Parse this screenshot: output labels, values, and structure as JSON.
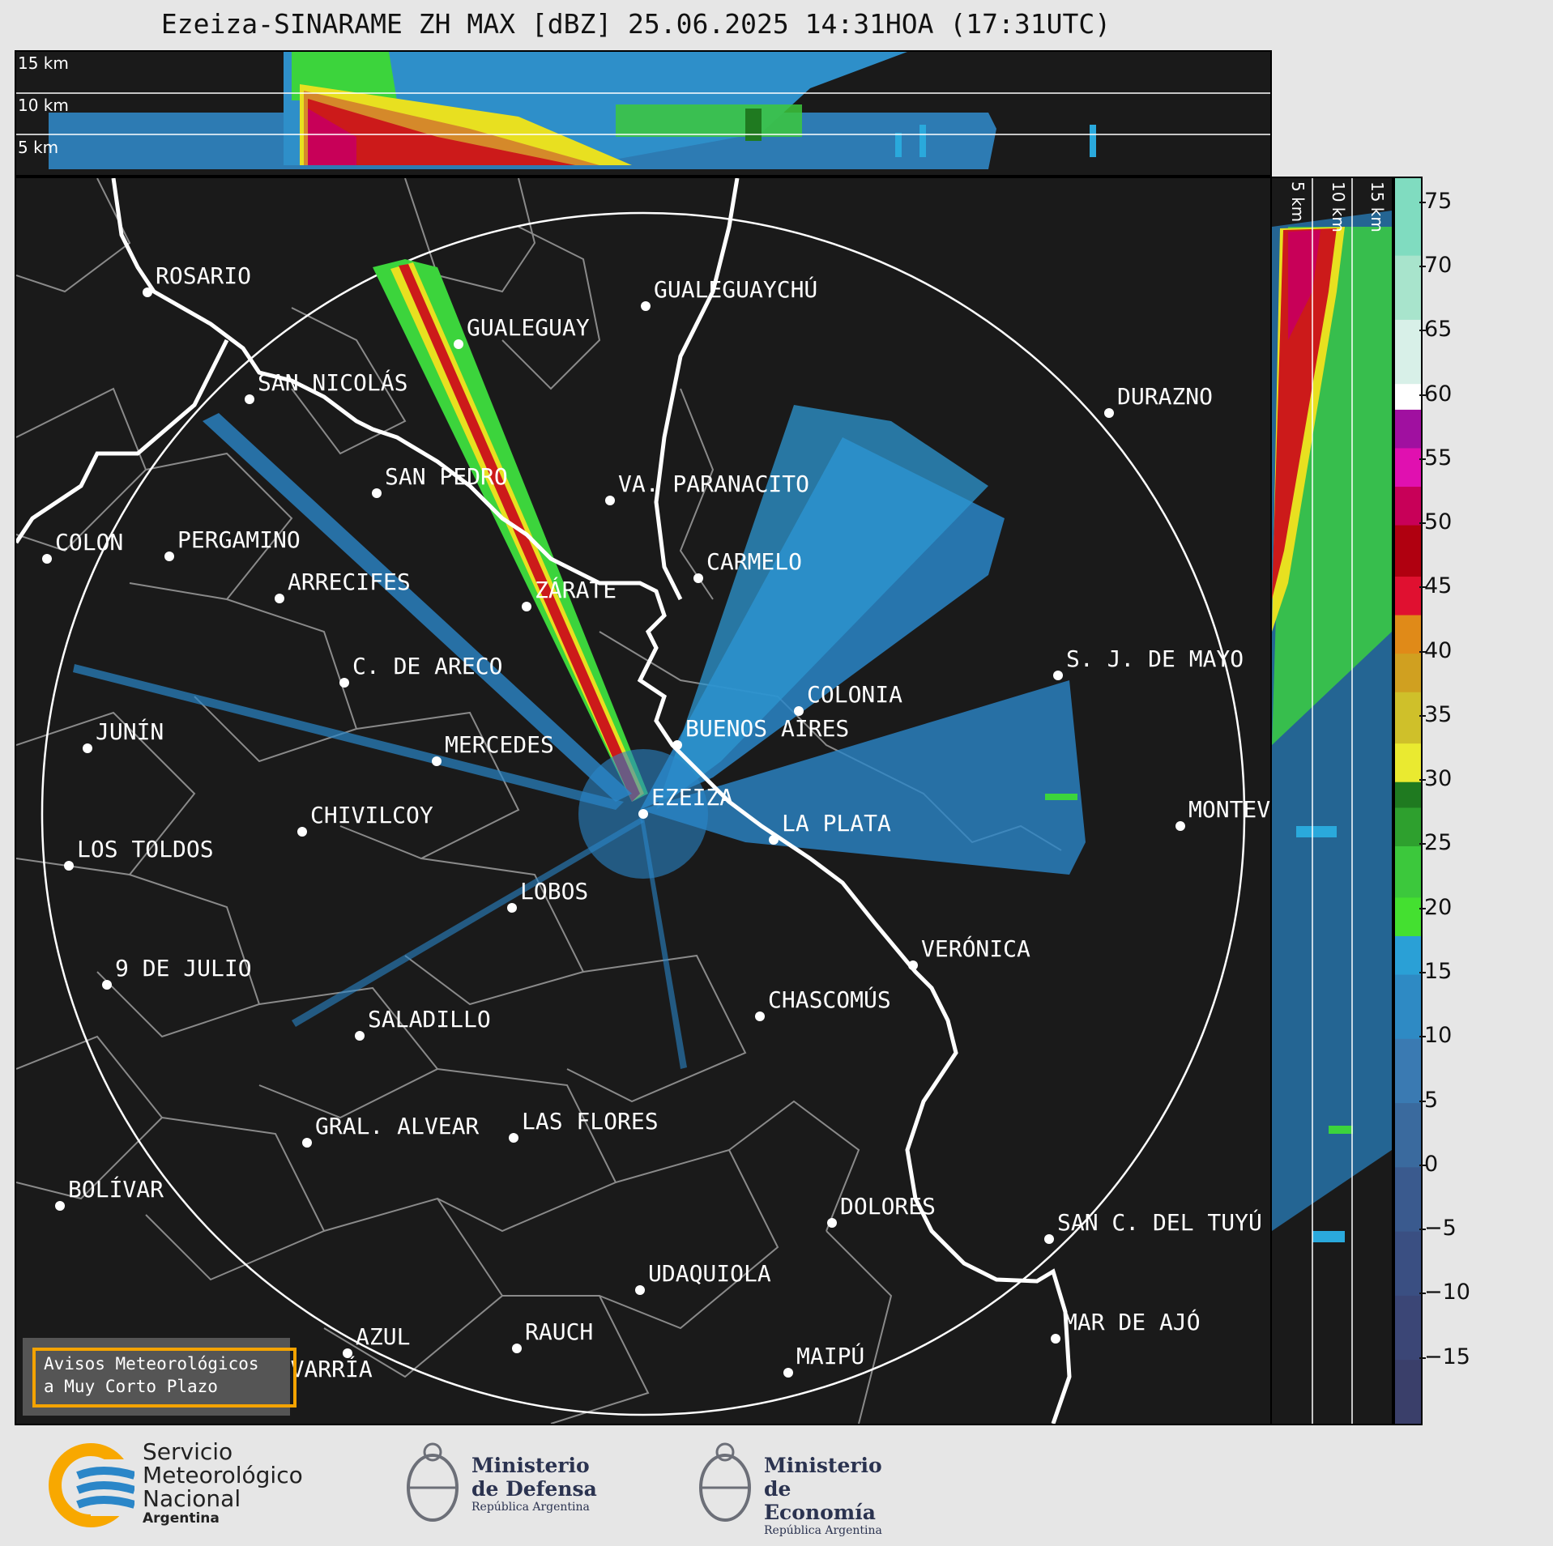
{
  "title": "Ezeiza-SINARAME ZH MAX [dBZ] 25.06.2025 14:31HOA (17:31UTC)",
  "top_altitude_labels": [
    "15 km",
    "10 km",
    "5 km"
  ],
  "side_altitude_labels": [
    "5 km",
    "10 km",
    "15 km"
  ],
  "colorbar": {
    "ticks": [
      "75",
      "70",
      "65",
      "60",
      "55",
      "50",
      "45",
      "40",
      "35",
      "30",
      "25",
      "20",
      "15",
      "10",
      "5",
      "0",
      "−5",
      "−10",
      "−15"
    ],
    "range": [
      -20,
      77
    ],
    "unit": "dBZ"
  },
  "cities": [
    {
      "name": "ROSARIO"
    },
    {
      "name": "GUALEGUAYCHÚ"
    },
    {
      "name": "GUALEGUAY"
    },
    {
      "name": "SAN NICOLÁS"
    },
    {
      "name": "DURAZNO"
    },
    {
      "name": "SAN PEDRO"
    },
    {
      "name": "VA. PARANACITO"
    },
    {
      "name": "COLON"
    },
    {
      "name": "PERGAMINO"
    },
    {
      "name": "CARMELO"
    },
    {
      "name": "ARRECIFES"
    },
    {
      "name": "ZÁRATE"
    },
    {
      "name": "S. J. DE MAYO"
    },
    {
      "name": "C. DE ARECO"
    },
    {
      "name": "COLONIA"
    },
    {
      "name": "BUENOS AIRES"
    },
    {
      "name": "JUNÍN"
    },
    {
      "name": "MERCEDES"
    },
    {
      "name": "MONTEV"
    },
    {
      "name": "EZEIZA"
    },
    {
      "name": "CHIVILCOY"
    },
    {
      "name": "LA PLATA"
    },
    {
      "name": "LOS TOLDOS"
    },
    {
      "name": "LOBOS"
    },
    {
      "name": "VERÓNICA"
    },
    {
      "name": "9 DE JULIO"
    },
    {
      "name": "CHASCOMÚS"
    },
    {
      "name": "SALADILLO"
    },
    {
      "name": "GRAL. ALVEAR"
    },
    {
      "name": "LAS FLORES"
    },
    {
      "name": "BOLÍVAR"
    },
    {
      "name": "DOLORES"
    },
    {
      "name": "SAN C. DEL TUYÚ"
    },
    {
      "name": "UDAQUIOLA"
    },
    {
      "name": "MAR DE AJÓ"
    },
    {
      "name": "AZUL"
    },
    {
      "name": "RAUCH"
    },
    {
      "name": "MAIPÚ"
    },
    {
      "name": "OLAVARRÍA"
    }
  ],
  "avisos": {
    "line1": "Avisos Meteorológicos",
    "line2": "a Muy Corto Plazo"
  },
  "logos": {
    "smn": {
      "line1": "Servicio",
      "line2": "Meteorológico",
      "line3": "Nacional",
      "line4": "Argentina"
    },
    "defensa": {
      "line1": "Ministerio",
      "line2": "de Defensa",
      "line3": "República Argentina"
    },
    "economia": {
      "line1": "Ministerio",
      "line2": "de Economía",
      "line3": "República Argentina"
    }
  },
  "colors": {
    "background": "#1a1a1a",
    "coast": "#ffffff",
    "boundaries": "#8a8a8a",
    "avisos_border": "#f4a300",
    "smn_orange": "#f8a800",
    "smn_blue": "#2a86c8"
  }
}
